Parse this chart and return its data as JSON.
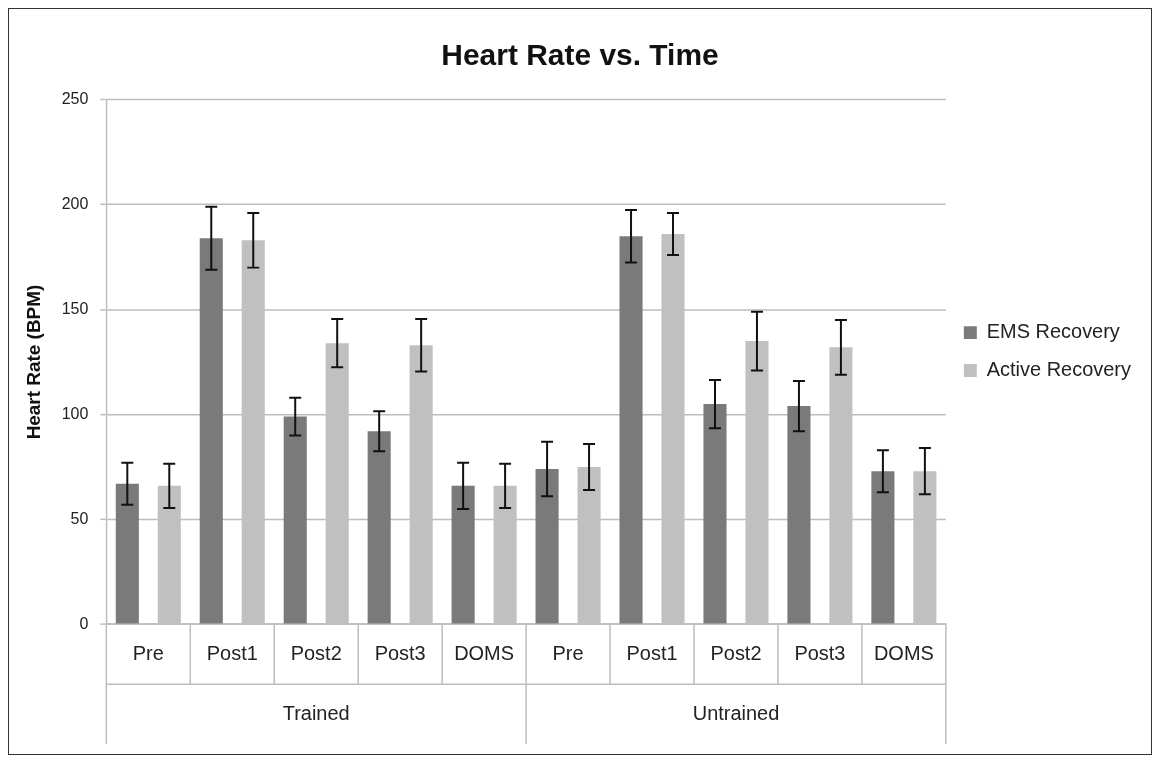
{
  "chart_data": {
    "type": "bar",
    "title": "Heart Rate vs. Time",
    "ylabel": "Heart Rate (BPM)",
    "categories": [
      "Pre",
      "Post1",
      "Post2",
      "Post3",
      "DOMS",
      "Pre",
      "Post1",
      "Post2",
      "Post3",
      "DOMS"
    ],
    "annotations": [
      "Trained",
      "Untrained"
    ],
    "series": [
      {
        "name": "EMS Recovery",
        "color": "#7a7a7a",
        "values": [
          67,
          184,
          99,
          92,
          66,
          74,
          185,
          105,
          104,
          73
        ],
        "errors": [
          10,
          15,
          9,
          9.5,
          11,
          13,
          12.5,
          11.5,
          12,
          10
        ]
      },
      {
        "name": "Active Recovery",
        "color": "#c0c0c0",
        "values": [
          66,
          183,
          134,
          133,
          66,
          75,
          186,
          135,
          132,
          73
        ],
        "errors": [
          10.5,
          13,
          11.5,
          12.5,
          10.5,
          11,
          10,
          14,
          13,
          11
        ]
      }
    ],
    "ylim": [
      0,
      250
    ],
    "yticks": [
      0,
      50,
      100,
      150,
      200,
      250
    ],
    "grid": "y",
    "legend": "right"
  }
}
